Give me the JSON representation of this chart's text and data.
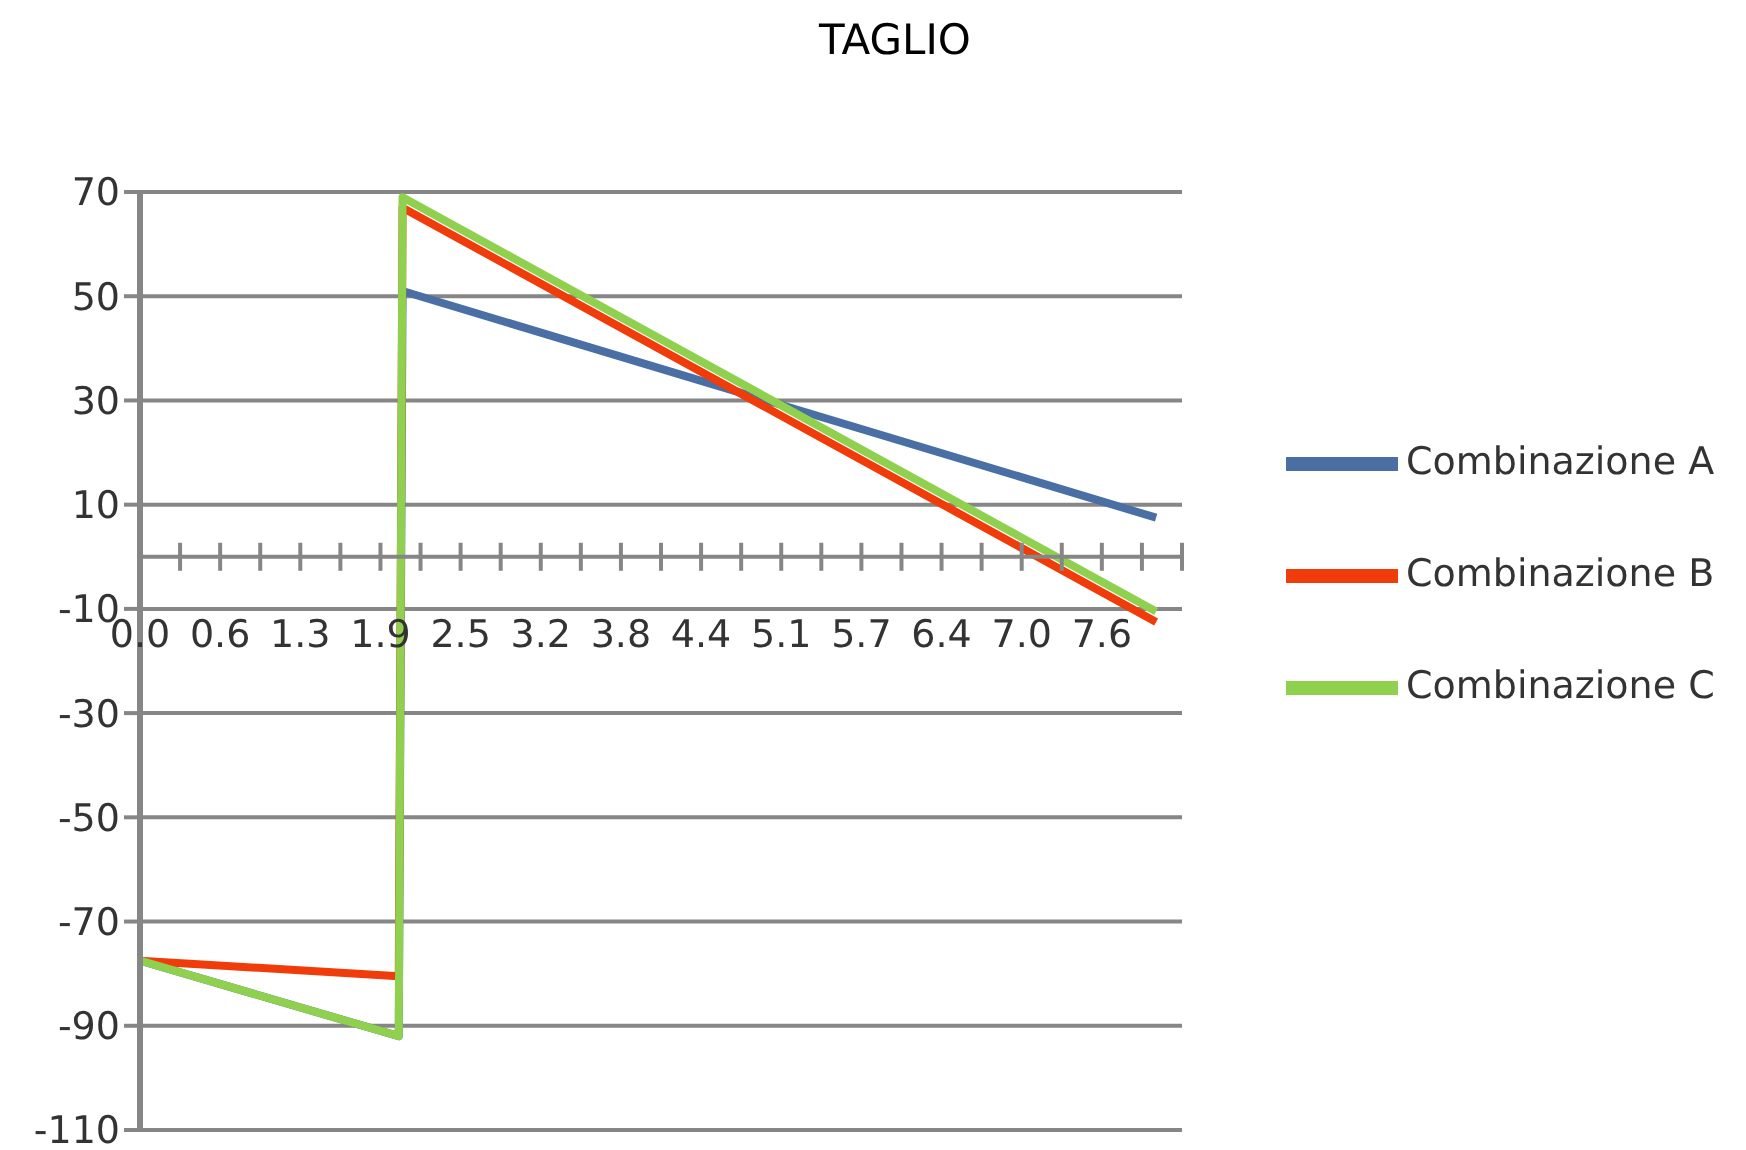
{
  "chart_data": {
    "type": "line",
    "title": "TAGLIO",
    "x": [
      0,
      2.05,
      2.08,
      8.05
    ],
    "series": [
      {
        "name": "Combinazione A",
        "color": "#4a6fa5",
        "values": [
          -77.5,
          -92,
          51,
          7.5
        ]
      },
      {
        "name": "Combinazione B",
        "color": "#f03c0a",
        "values": [
          -77.5,
          -80.5,
          67,
          -12.5
        ]
      },
      {
        "name": "Combinazione C",
        "color": "#8fd14f",
        "values": [
          -77.5,
          -92,
          69,
          -10.5
        ]
      }
    ],
    "xlim": [
      0,
      8.255
    ],
    "xticks": [
      {
        "value": 0,
        "label": "0.0"
      },
      {
        "value": 0.3175,
        "label": null
      },
      {
        "value": 0.635,
        "label": "0.6"
      },
      {
        "value": 0.9525,
        "label": null
      },
      {
        "value": 1.27,
        "label": "1.3"
      },
      {
        "value": 1.5875,
        "label": null
      },
      {
        "value": 1.905,
        "label": "1.9"
      },
      {
        "value": 2.2225,
        "label": null
      },
      {
        "value": 2.54,
        "label": "2.5"
      },
      {
        "value": 2.8575,
        "label": null
      },
      {
        "value": 3.175,
        "label": "3.2"
      },
      {
        "value": 3.4925,
        "label": null
      },
      {
        "value": 3.81,
        "label": "3.8"
      },
      {
        "value": 4.1275,
        "label": null
      },
      {
        "value": 4.445,
        "label": "4.4"
      },
      {
        "value": 4.7625,
        "label": null
      },
      {
        "value": 5.08,
        "label": "5.1"
      },
      {
        "value": 5.3975,
        "label": null
      },
      {
        "value": 5.715,
        "label": "5.7"
      },
      {
        "value": 6.0325,
        "label": null
      },
      {
        "value": 6.35,
        "label": "6.4"
      },
      {
        "value": 6.6675,
        "label": null
      },
      {
        "value": 6.985,
        "label": "7.0"
      },
      {
        "value": 7.3025,
        "label": null
      },
      {
        "value": 7.62,
        "label": "7.6"
      },
      {
        "value": 7.9375,
        "label": null
      },
      {
        "value": 8.255,
        "label": null
      }
    ],
    "ylim": [
      -110,
      70
    ],
    "yticks": [
      70,
      50,
      30,
      10,
      -10,
      -30,
      -50,
      -70,
      -90,
      -110
    ],
    "grid": "y",
    "legend": "right",
    "marker": "none",
    "line_style": "solid"
  }
}
